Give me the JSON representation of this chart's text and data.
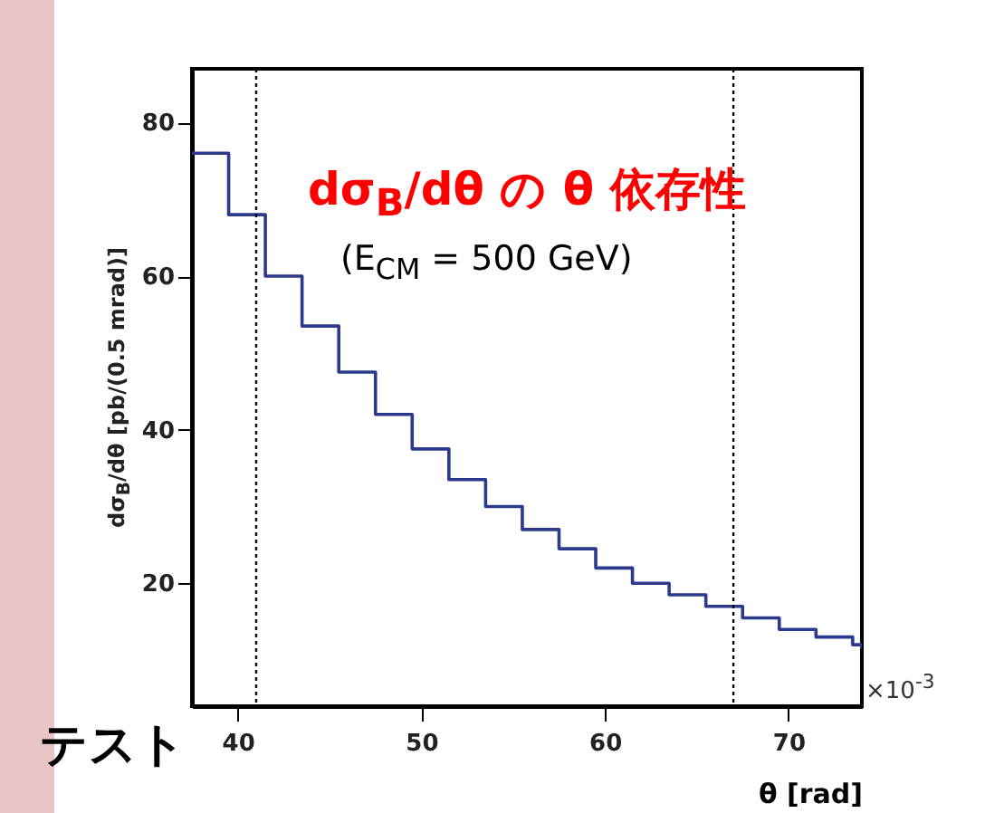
{
  "chart_data": {
    "type": "step",
    "title": "dσ$_{B}$/dθ の θ 依存性",
    "subtitle": "(E$_{CM}$ = 500 GeV)",
    "xlabel": "θ [rad]",
    "ylabel": "dσ$_{B}$/dθ [pb/(0.5 mrad)]",
    "annotations": [
      "×10$^{-3}$",
      "テスト"
    ],
    "x": [
      37.5,
      39.5,
      41.5,
      43.5,
      45.5,
      47.5,
      49.5,
      51.5,
      53.5,
      55.5,
      57.5,
      59.5,
      61.5,
      63.5,
      65.5,
      67.5,
      69.5,
      71.5,
      73.5,
      74
    ],
    "series": [
      {
        "color": "#2b3a8c",
        "values": [
          76,
          68,
          60,
          53.5,
          47.5,
          42,
          37.5,
          33.5,
          30,
          27,
          24.5,
          22,
          20,
          18.5,
          17,
          15.5,
          14,
          13,
          12,
          11.5
        ]
      }
    ],
    "xlim": [
      37.5,
      74
    ],
    "ylim": [
      4,
      87
    ],
    "xticks": [
      40,
      50,
      60,
      70
    ],
    "yticks": [
      20,
      40,
      60,
      80
    ],
    "ref_lines": [
      {
        "axis": "x",
        "value": 41,
        "color": "#000000",
        "line_style": "dotted"
      },
      {
        "axis": "x",
        "value": 67,
        "color": "#000000",
        "line_style": "dotted"
      }
    ],
    "grid": false,
    "line_style": "solid"
  }
}
